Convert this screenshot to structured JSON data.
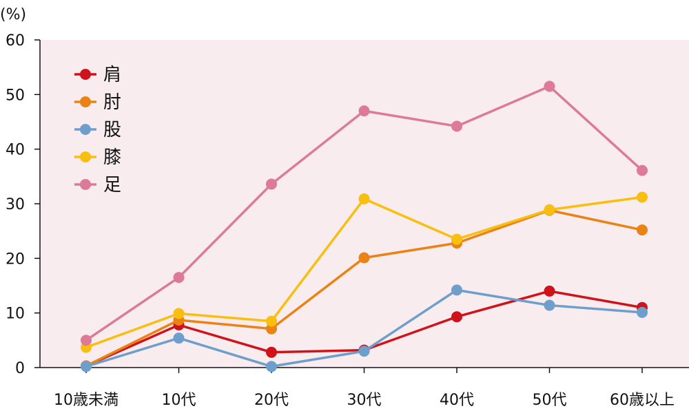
{
  "chart_data": {
    "type": "line",
    "unit_label": "(%)",
    "categories": [
      "10歳未満",
      "10代",
      "20代",
      "30代",
      "40代",
      "50代",
      "60歳以上"
    ],
    "ylim": [
      0,
      60
    ],
    "yticks": [
      0,
      10,
      20,
      30,
      40,
      50,
      60
    ],
    "grid": false,
    "legend_position": "top-left",
    "plot_background": "#f9ecef",
    "series": [
      {
        "name": "肩",
        "color": "#d0121b",
        "values": [
          0.3,
          7.8,
          2.8,
          3.2,
          9.3,
          14.0,
          11.0
        ]
      },
      {
        "name": "肘",
        "color": "#ea8316",
        "values": [
          0.3,
          8.7,
          7.1,
          20.1,
          22.8,
          28.8,
          25.2
        ]
      },
      {
        "name": "股",
        "color": "#6e9ecb",
        "values": [
          0.2,
          5.4,
          0.2,
          3.0,
          14.2,
          11.4,
          10.1
        ]
      },
      {
        "name": "膝",
        "color": "#f8be10",
        "values": [
          3.7,
          9.9,
          8.5,
          30.9,
          23.5,
          28.9,
          31.2
        ]
      },
      {
        "name": "足",
        "color": "#dc7a97",
        "values": [
          5.0,
          16.5,
          33.6,
          47.0,
          44.2,
          51.5,
          36.1
        ]
      }
    ]
  }
}
